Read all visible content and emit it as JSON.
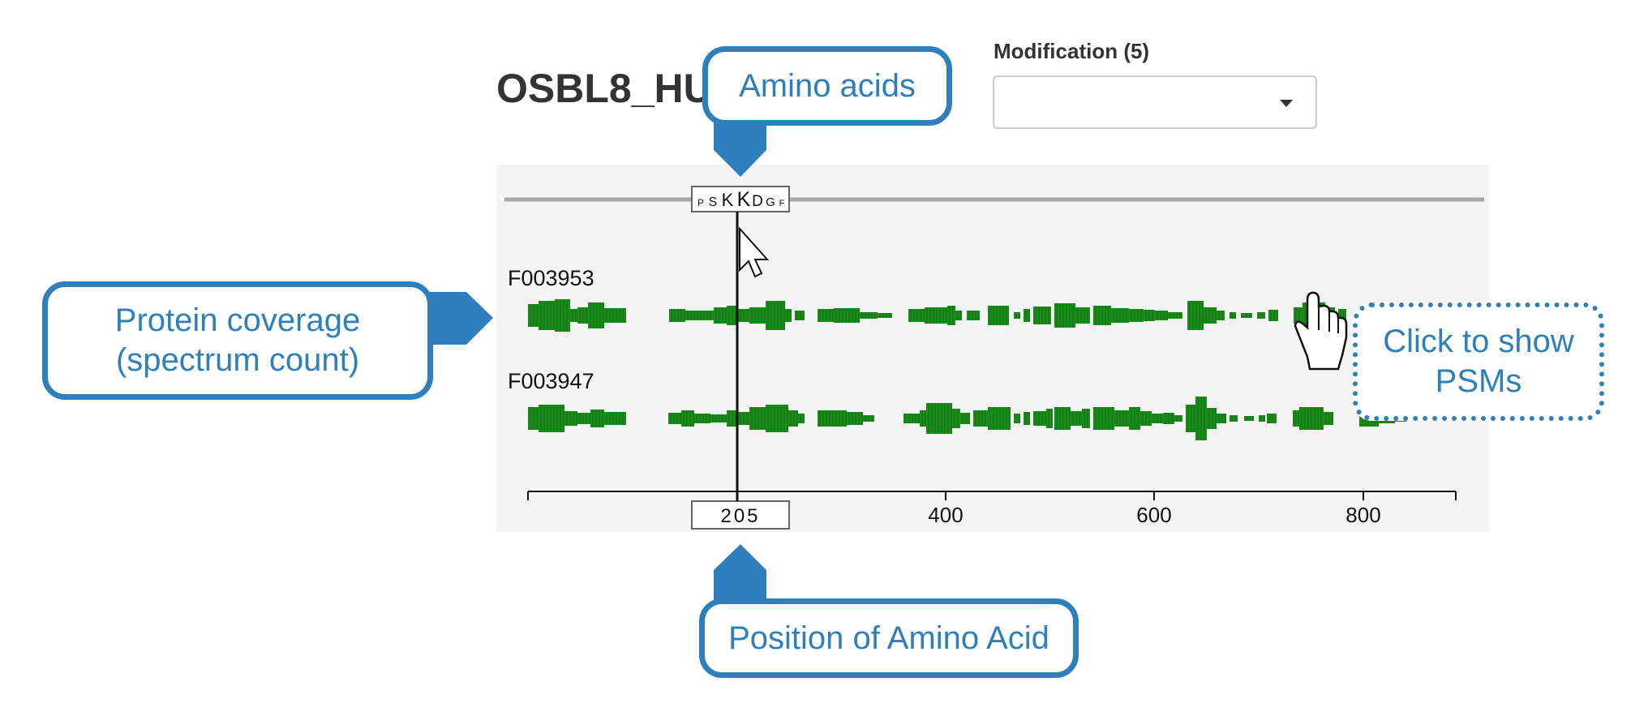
{
  "protein_title": "OSBL8_HU",
  "modification": {
    "label": "Modification (5)",
    "selected": ""
  },
  "viewer": {
    "sequence_window": [
      "P",
      "S",
      "K",
      "K",
      "D",
      "G",
      "F"
    ],
    "selected_position": "205",
    "axis_ticks": [
      "400",
      "600",
      "800"
    ],
    "samples": [
      {
        "name": "F003953"
      },
      {
        "name": "F003947"
      }
    ],
    "bar_color": "#1a8a1a"
  },
  "callouts": {
    "amino_acids": "Amino acids",
    "protein_coverage": [
      "Protein coverage",
      "(spectrum count)"
    ],
    "position": "Position of Amino Acid",
    "click_psm": [
      "Click to show",
      "PSMs"
    ]
  },
  "accent_color": "#2e7fbb"
}
